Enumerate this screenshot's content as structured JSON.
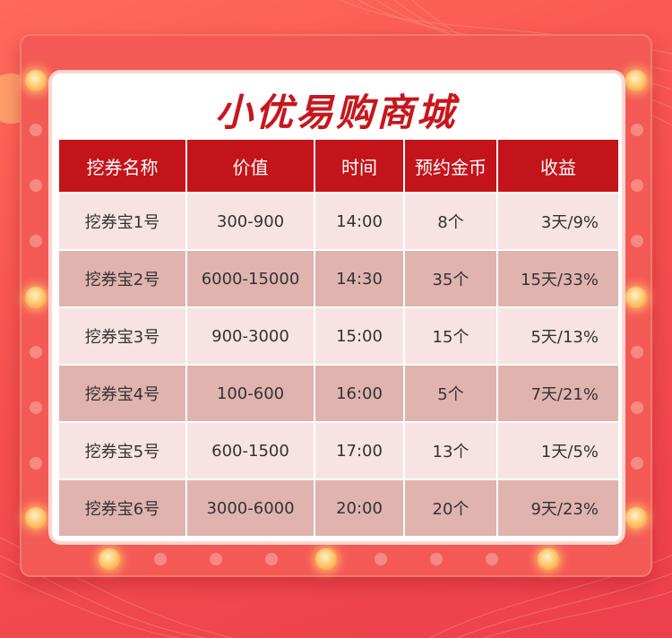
{
  "title": "小优易购商城",
  "colors": {
    "header_bg": "#c4141b",
    "title_text": "#c8161d",
    "row_light": "#f7e3e1",
    "row_dark": "#e0b3af",
    "frame": "#f45a55"
  },
  "table": {
    "headers": [
      "挖券名称",
      "价值",
      "时间",
      "预约金币",
      "收益"
    ],
    "rows": [
      [
        "挖券宝1号",
        "300-900",
        "14:00",
        "8个",
        "3天/9%"
      ],
      [
        "挖券宝2号",
        "6000-15000",
        "14:30",
        "35个",
        "15天/33%"
      ],
      [
        "挖券宝3号",
        "900-3000",
        "15:00",
        "15个",
        "5天/13%"
      ],
      [
        "挖券宝4号",
        "100-600",
        "16:00",
        "5个",
        "7天/21%"
      ],
      [
        "挖券宝5号",
        "600-1500",
        "17:00",
        "13个",
        "1天/5%"
      ],
      [
        "挖券宝6号",
        "3000-6000",
        "20:00",
        "20个",
        "9天/23%"
      ]
    ]
  }
}
